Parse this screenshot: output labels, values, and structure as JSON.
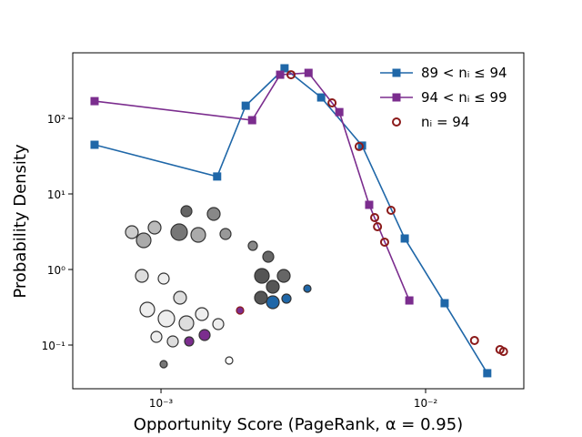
{
  "chart_data": {
    "type": "line",
    "x_label": "Opportunity Score (PageRank, α = 0.95)",
    "y_label": "Probability Density",
    "xscale": "log",
    "yscale": "log",
    "xlim": [
      0.000464,
      0.0235
    ],
    "ylim": [
      0.0264,
      737
    ],
    "xticks": [
      {
        "value": 0.001,
        "label": "10⁻³"
      },
      {
        "value": 0.01,
        "label": "10⁻²"
      }
    ],
    "yticks": [
      {
        "value": 0.1,
        "label": "10⁻¹"
      },
      {
        "value": 1,
        "label": "10⁰"
      },
      {
        "value": 10,
        "label": "10¹"
      },
      {
        "value": 100,
        "label": "10²"
      }
    ],
    "legend": "upper right",
    "series": [
      {
        "name": "89 < nᵢ ≤ 94",
        "color": "#1f67a8",
        "marker": "square",
        "line": true,
        "x": [
          0.000561,
          0.00163,
          0.00209,
          0.00293,
          0.00403,
          0.00575,
          0.00834,
          0.0118,
          0.0171
        ],
        "values": [
          44.7,
          17,
          147,
          460,
          189,
          43.6,
          2.57,
          0.358,
          0.0424
        ]
      },
      {
        "name": "94 < nᵢ ≤ 99",
        "color": "#7b2d8e",
        "marker": "square",
        "line": true,
        "x": [
          0.000561,
          0.00221,
          0.00282,
          0.00361,
          0.00472,
          0.00612,
          0.00868
        ],
        "values": [
          169,
          94.6,
          378,
          400,
          121,
          7.17,
          0.389
        ]
      },
      {
        "name": "nᵢ = 94",
        "color": "#8b1a1a",
        "marker": "circle",
        "line": false,
        "x": [
          0.0031,
          0.00443,
          0.00561,
          0.0074,
          0.00642,
          0.00658,
          0.007,
          0.0153,
          0.0191,
          0.0197
        ],
        "values": [
          378,
          160,
          42.4,
          6.07,
          4.86,
          3.68,
          2.3,
          0.115,
          0.087,
          0.082
        ]
      }
    ]
  }
}
